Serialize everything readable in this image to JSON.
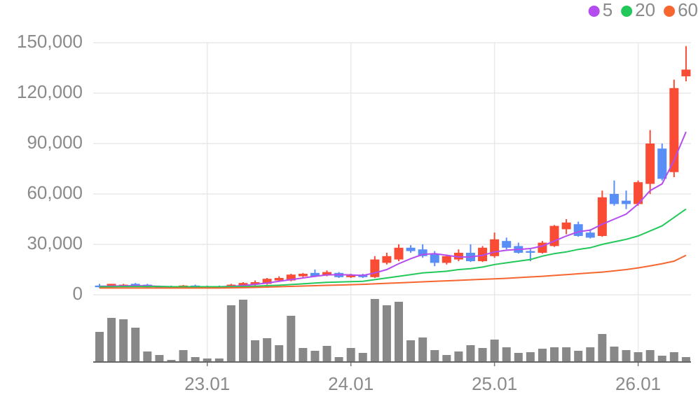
{
  "chart_data": {
    "type": "candlestick",
    "categories": [
      null,
      null,
      null,
      null,
      null,
      null,
      null,
      null,
      null,
      "23.01",
      null,
      null,
      null,
      null,
      null,
      null,
      null,
      null,
      null,
      null,
      null,
      "24.01",
      null,
      null,
      null,
      null,
      null,
      null,
      null,
      null,
      null,
      null,
      null,
      "25.01",
      null,
      null,
      null,
      null,
      null,
      null,
      null,
      null,
      null,
      null,
      null,
      "26.01",
      null,
      null,
      null,
      null
    ],
    "open": [
      5500,
      5000,
      5000,
      6500,
      6000,
      5000,
      5000,
      4500,
      5500,
      5000,
      5000,
      4500,
      5500,
      6000,
      6500,
      8500,
      8500,
      11000,
      13000,
      11500,
      13000,
      10500,
      12000,
      10500,
      19000,
      21000,
      28000,
      27000,
      24000,
      19000,
      21000,
      25000,
      20000,
      23000,
      32000,
      29000,
      26000,
      25000,
      29000,
      39000,
      42000,
      37000,
      35000,
      60000,
      56000,
      54000,
      66000,
      87000,
      73000,
      130000
    ],
    "high": [
      6500,
      6500,
      6500,
      7000,
      6500,
      5500,
      5500,
      5800,
      6000,
      5500,
      5500,
      6500,
      7500,
      8500,
      10000,
      11000,
      12500,
      13000,
      15000,
      14500,
      13500,
      12500,
      12500,
      23000,
      25000,
      30000,
      29500,
      30000,
      26000,
      24000,
      27000,
      30000,
      29000,
      37000,
      34000,
      31000,
      27000,
      32000,
      41500,
      45000,
      43500,
      39000,
      62000,
      68000,
      62000,
      68000,
      98000,
      90000,
      128000,
      148000
    ],
    "low": [
      4000,
      4500,
      4500,
      4800,
      4200,
      3800,
      3800,
      4200,
      4200,
      4200,
      4200,
      4200,
      5000,
      5500,
      6000,
      8000,
      8000,
      10500,
      10500,
      11000,
      10000,
      10000,
      10000,
      10000,
      18000,
      20000,
      25000,
      22000,
      17000,
      18000,
      20000,
      19500,
      19500,
      22000,
      27000,
      24500,
      20000,
      24500,
      28500,
      36000,
      34500,
      33500,
      34500,
      53000,
      51000,
      53000,
      60000,
      68000,
      70000,
      127000
    ],
    "close": [
      4500,
      6500,
      6000,
      5000,
      4500,
      4000,
      4000,
      5500,
      4500,
      4500,
      4500,
      6000,
      7000,
      7500,
      9500,
      10000,
      12000,
      12500,
      11000,
      13500,
      10500,
      12000,
      10500,
      21000,
      23000,
      28000,
      26000,
      23000,
      19000,
      23000,
      25000,
      20000,
      28000,
      33000,
      28000,
      25000,
      25000,
      31000,
      41000,
      43000,
      35000,
      34000,
      58000,
      54000,
      54000,
      67000,
      90000,
      69000,
      123000,
      134000
    ],
    "volume": [
      43,
      63,
      61,
      49,
      15,
      10,
      3,
      17,
      7,
      5,
      5,
      81,
      89,
      31,
      34,
      24,
      66,
      20,
      16,
      23,
      7,
      20,
      13,
      90,
      81,
      86,
      31,
      35,
      17,
      10,
      15,
      24,
      20,
      32,
      21,
      13,
      14,
      19,
      21,
      21,
      16,
      21,
      40,
      22,
      17,
      14,
      17,
      9,
      14,
      7
    ],
    "up_color": "#fa4b35",
    "down_color": "#5a8ef7",
    "volume_color": "#888888",
    "ma_series": [
      {
        "name": "5",
        "color": "#b44cf0",
        "values": [
          5000,
          5200,
          5300,
          5400,
          5300,
          5000,
          4800,
          4700,
          4800,
          4800,
          4800,
          5000,
          5500,
          6200,
          7000,
          8000,
          9000,
          10000,
          11000,
          11800,
          12000,
          11800,
          11500,
          13000,
          15000,
          18500,
          21500,
          24000,
          24500,
          23500,
          22500,
          22500,
          23500,
          25500,
          26500,
          27000,
          27500,
          29000,
          32000,
          35000,
          37500,
          38500,
          42000,
          45000,
          48000,
          54000,
          62000,
          66000,
          80000,
          97000
        ]
      },
      {
        "name": "20",
        "color": "#22c95a",
        "values": [
          4800,
          4800,
          4900,
          4900,
          4900,
          4900,
          4800,
          4800,
          4800,
          4800,
          4800,
          4800,
          4900,
          5100,
          5400,
          5700,
          6100,
          6500,
          7000,
          7400,
          7600,
          7800,
          8000,
          9000,
          10000,
          11000,
          12000,
          13000,
          13500,
          14000,
          15000,
          15500,
          16500,
          18000,
          19000,
          20000,
          21000,
          23000,
          24500,
          25500,
          27000,
          28000,
          30000,
          31500,
          33000,
          35000,
          38000,
          41000,
          46000,
          51000
        ]
      },
      {
        "name": "60",
        "color": "#f76530",
        "values": [
          4000,
          4000,
          4000,
          4000,
          4000,
          4000,
          4000,
          4000,
          4000,
          4000,
          4000,
          4100,
          4200,
          4400,
          4600,
          4800,
          5000,
          5200,
          5400,
          5600,
          5800,
          6000,
          6200,
          6500,
          6800,
          7100,
          7400,
          7700,
          8000,
          8300,
          8600,
          8900,
          9200,
          9500,
          9800,
          10200,
          10600,
          11000,
          11500,
          12000,
          12500,
          13000,
          13500,
          14200,
          15000,
          16000,
          17200,
          18500,
          20000,
          23500
        ]
      }
    ],
    "ylim": [
      0,
      150000
    ],
    "yticks": [
      0,
      {
        "value": 30000,
        "label": "30,000"
      },
      {
        "value": 60000,
        "label": "60,000"
      },
      {
        "value": 90000,
        "label": "90,000"
      },
      {
        "value": 120000,
        "label": "120,000"
      },
      {
        "value": 150000,
        "label": "150,000"
      }
    ],
    "grid": true,
    "legend": "top-right"
  }
}
